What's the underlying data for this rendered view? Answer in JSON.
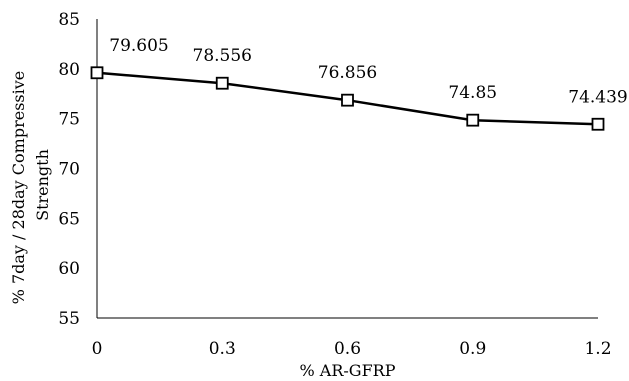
{
  "chart_data": {
    "type": "line",
    "title": "",
    "xlabel": "% AR-GFRP",
    "ylabel_lines": [
      "% 7day / 28day Compressive",
      "Strength"
    ],
    "x_tick_labels": [
      "0",
      "0.3",
      "0.6",
      "0.9",
      "1.2"
    ],
    "y_tick_labels": [
      "55",
      "60",
      "65",
      "70",
      "75",
      "80",
      "85"
    ],
    "ylim": [
      55,
      85
    ],
    "xlim": [
      0,
      1.2
    ],
    "grid": false,
    "legend": "none",
    "series": [
      {
        "x": [
          0,
          0.3,
          0.6,
          0.9,
          1.2
        ],
        "values": [
          79.605,
          78.556,
          76.856,
          74.85,
          74.439
        ],
        "data_labels": [
          "79.605",
          "78.556",
          "76.856",
          "74.85",
          "74.439"
        ],
        "marker": "square",
        "color": "#000000"
      }
    ]
  }
}
